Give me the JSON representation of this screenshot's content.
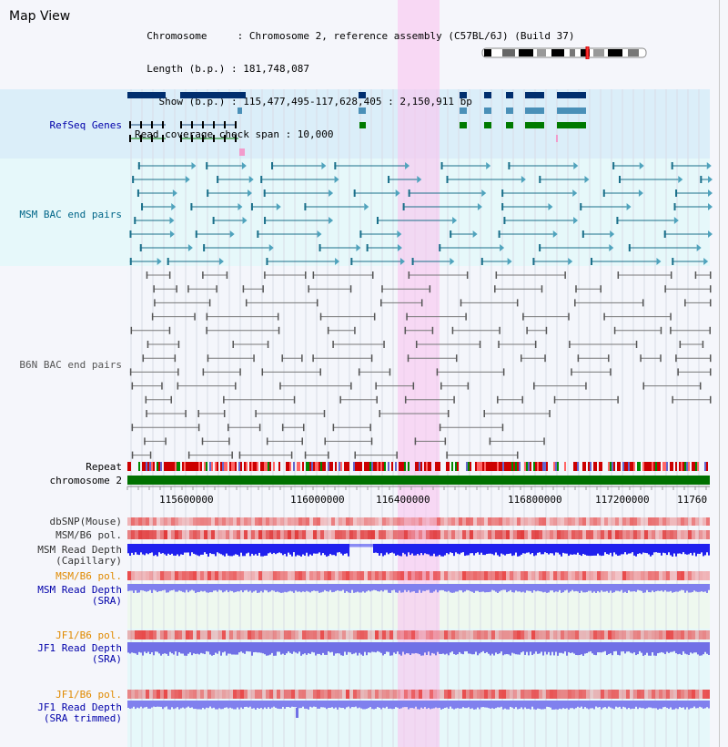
{
  "header": {
    "title": "Map View",
    "info_lines": [
      "  Chromosome     : Chromosome 2, reference assembly (C57BL/6J) (Build 37)",
      "  Length (b.p.) : 181,748,087",
      "    Show (b.p.) : 115,477,495-117,628,405 : 2,150,911 bp",
      "Read coverage check span : 10,000"
    ]
  },
  "tracks": {
    "refseq": "RefSeq Genes",
    "msm_bac": "MSM BAC end pairs",
    "b6n_bac": "B6N BAC end pairs",
    "repeat": "Repeat",
    "chromosome": "chromosome 2",
    "dbsnp": "dbSNP(Mouse)",
    "msm_b6_pol": "MSM/B6 pol.",
    "msm_depth_cap": "MSM Read Depth\n(Capillary)",
    "msm_b6_pol2": "MSM/B6 pol.",
    "msm_depth_sra": "MSM Read Depth\n(SRA)",
    "jf1_b6_pol": "JF1/B6 pol.",
    "jf1_depth_sra": "JF1 Read Depth\n(SRA)",
    "jf1_b6_pol2": "JF1/B6 pol.",
    "jf1_depth_trim": "JF1 Read Depth\n(SRA trimmed)"
  },
  "axis": {
    "ticks": [
      "115600000",
      "116000000",
      "116400000",
      "116800000",
      "117200000",
      "11760"
    ]
  },
  "colors": {
    "refseq_bg": "#dbeef9",
    "msm_bg": "#e6f8fa",
    "highlight": "#f9d9f3",
    "chromosome_band": "#007100",
    "msm_label": "#006688",
    "refseq_label": "#0000aa",
    "b6n_label": "#555555",
    "orange_label": "#e08a00",
    "blue_label": "#0000aa"
  }
}
